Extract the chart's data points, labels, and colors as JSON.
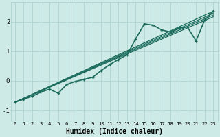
{
  "xlabel": "Humidex (Indice chaleur)",
  "xlim": [
    -0.5,
    23.5
  ],
  "ylim": [
    -1.35,
    2.65
  ],
  "xtick_labels": [
    "0",
    "1",
    "2",
    "3",
    "4",
    "5",
    "6",
    "7",
    "8",
    "9",
    "10",
    "11",
    "12",
    "13",
    "14",
    "15",
    "16",
    "17",
    "18",
    "19",
    "20",
    "21",
    "22",
    "23"
  ],
  "ytick_values": [
    -1,
    0,
    1,
    2
  ],
  "ytick_labels": [
    "-1",
    "0",
    "1",
    "2"
  ],
  "bg_color": "#ceeae6",
  "grid_color": "#aed4d0",
  "line_color": "#1a6b5c",
  "jagged_line": {
    "x": [
      0,
      1,
      2,
      3,
      4,
      5,
      6,
      7,
      8,
      9,
      10,
      11,
      12,
      13,
      14,
      15,
      16,
      17,
      18,
      19,
      20,
      21,
      22,
      23
    ],
    "y": [
      -0.72,
      -0.62,
      -0.52,
      -0.38,
      -0.28,
      -0.42,
      -0.12,
      -0.02,
      0.05,
      0.12,
      0.35,
      0.55,
      0.72,
      0.88,
      1.42,
      1.92,
      1.88,
      1.72,
      1.65,
      1.78,
      1.82,
      1.35,
      2.05,
      2.35
    ],
    "lw": 1.2,
    "marker": "+"
  },
  "straight_lines": [
    {
      "x": [
        0,
        23
      ],
      "y": [
        -0.72,
        2.35
      ],
      "lw": 0.9
    },
    {
      "x": [
        0,
        23
      ],
      "y": [
        -0.72,
        2.28
      ],
      "lw": 0.9
    },
    {
      "x": [
        0,
        23
      ],
      "y": [
        -0.72,
        2.22
      ],
      "lw": 0.9
    },
    {
      "x": [
        0,
        23
      ],
      "y": [
        -0.72,
        2.16
      ],
      "lw": 0.9
    }
  ]
}
